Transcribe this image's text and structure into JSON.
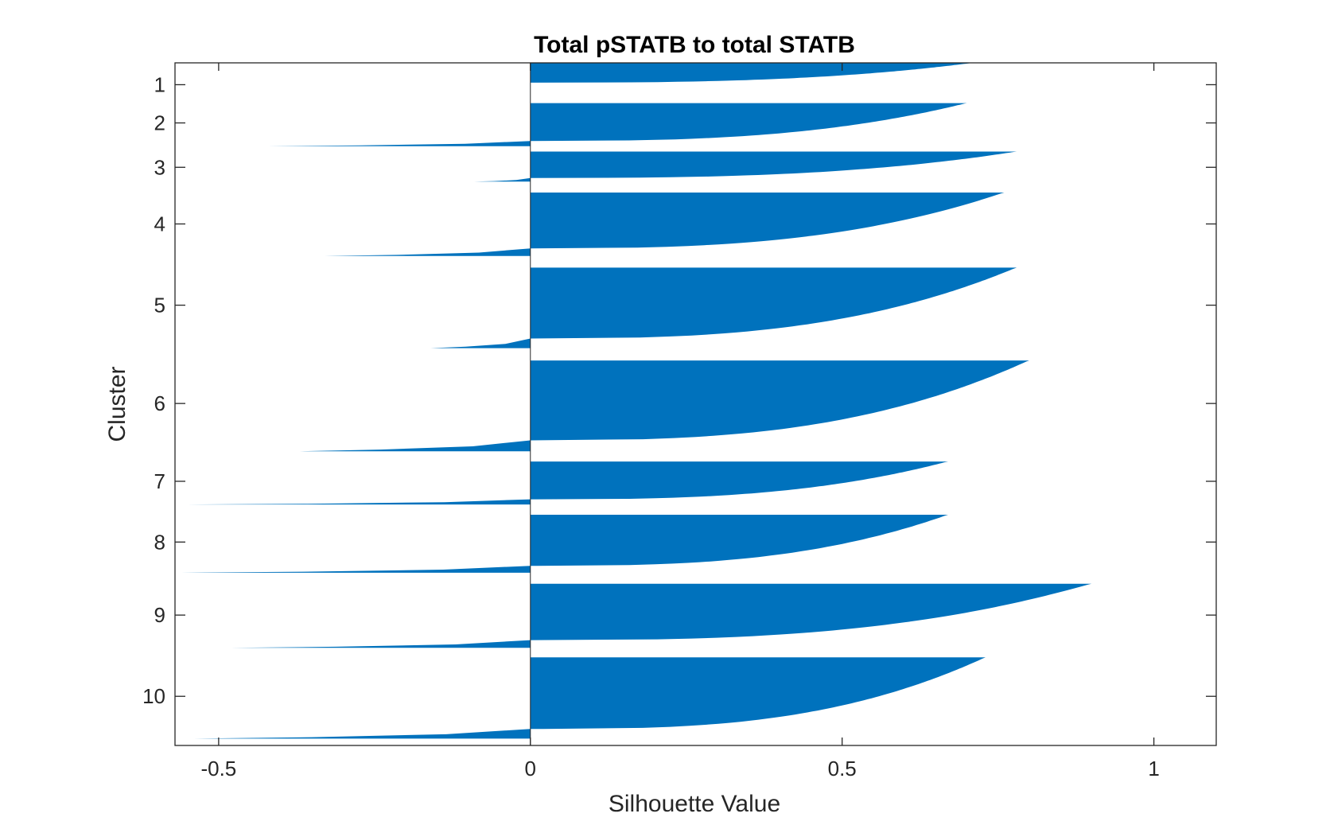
{
  "chart_data": {
    "type": "silhouette",
    "title": "Total pSTATB to total STATB",
    "xlabel": "Silhouette Value",
    "ylabel": "Cluster",
    "xlim": [
      -0.57,
      1.1
    ],
    "xticks": [
      -0.5,
      0,
      0.5,
      1
    ],
    "xtick_labels": [
      "-0.5",
      "0",
      "0.5",
      "1"
    ],
    "ytick_labels": [
      "1",
      "2",
      "3",
      "4",
      "5",
      "6",
      "7",
      "8",
      "9",
      "10"
    ],
    "bar_color": "#0072BD",
    "grid": false,
    "clusters": [
      {
        "label": "1",
        "max": 0.71,
        "min": 0.0,
        "tail": 0.0,
        "knee": 0.3,
        "start": 0.0,
        "end": 0.029,
        "center": 0.032
      },
      {
        "label": "2",
        "max": 0.7,
        "min": -0.42,
        "tail": 0.0,
        "knee": 0.3,
        "start": 0.059,
        "end": 0.122,
        "center": 0.088
      },
      {
        "label": "3",
        "max": 0.78,
        "min": -0.09,
        "tail": 0.0,
        "knee": 0.3,
        "start": 0.13,
        "end": 0.174,
        "center": 0.153
      },
      {
        "label": "4",
        "max": 0.76,
        "min": -0.33,
        "tail": 0.0,
        "knee": 0.35,
        "start": 0.19,
        "end": 0.283,
        "center": 0.236
      },
      {
        "label": "5",
        "max": 0.78,
        "min": -0.16,
        "tail": 0.0,
        "knee": 0.35,
        "start": 0.3,
        "end": 0.418,
        "center": 0.355
      },
      {
        "label": "6",
        "max": 0.8,
        "min": -0.37,
        "tail": 0.0,
        "knee": 0.4,
        "start": 0.436,
        "end": 0.569,
        "center": 0.499
      },
      {
        "label": "7",
        "max": 0.67,
        "min": -0.55,
        "tail": 0.01,
        "knee": 0.3,
        "start": 0.584,
        "end": 0.647,
        "center": 0.613
      },
      {
        "label": "8",
        "max": 0.67,
        "min": -0.56,
        "tail": 0.01,
        "knee": 0.35,
        "start": 0.662,
        "end": 0.747,
        "center": 0.702
      },
      {
        "label": "9",
        "max": 0.9,
        "min": -0.48,
        "tail": 0.0,
        "knee": 0.4,
        "start": 0.763,
        "end": 0.857,
        "center": 0.809
      },
      {
        "label": "10",
        "max": 0.73,
        "min": -0.54,
        "tail": 0.02,
        "knee": 0.25,
        "start": 0.871,
        "end": 0.99,
        "center": 0.928
      }
    ]
  }
}
